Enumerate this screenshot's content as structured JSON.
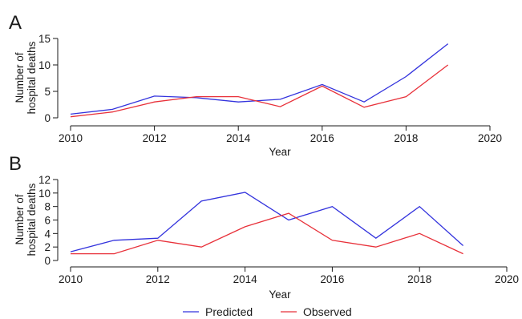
{
  "colors": {
    "predicted": "#3333dd",
    "observed": "#e8313a",
    "axis": "#1a1a1a"
  },
  "legend": {
    "position": "bottom-center",
    "items": [
      {
        "label": "Predicted",
        "color": "#3333dd"
      },
      {
        "label": "Observed",
        "color": "#e8313a"
      }
    ]
  },
  "chart_data": [
    {
      "panel": "A",
      "type": "line",
      "xlabel": "Year",
      "ylabel": "Number of hospital deaths",
      "xlim": [
        2010,
        2020
      ],
      "ylim": [
        0,
        15
      ],
      "xticks": [
        2010,
        2012,
        2014,
        2016,
        2018,
        2020
      ],
      "yticks": [
        0,
        5,
        10,
        15
      ],
      "grid": false,
      "x": [
        2010,
        2011,
        2012,
        2013,
        2014,
        2015,
        2016,
        2017,
        2018,
        2019
      ],
      "series": [
        {
          "name": "Predicted",
          "values": [
            0.7,
            1.6,
            4.1,
            3.8,
            3.0,
            3.5,
            6.3,
            3.0,
            7.8,
            14.0
          ]
        },
        {
          "name": "Observed",
          "values": [
            0.2,
            1.1,
            3.0,
            4.0,
            4.0,
            2.1,
            6.0,
            2.0,
            4.0,
            10.0
          ]
        }
      ]
    },
    {
      "panel": "B",
      "type": "line",
      "xlabel": "Year",
      "ylabel": "Number of hospital deaths",
      "xlim": [
        2010,
        2020
      ],
      "ylim": [
        0,
        12
      ],
      "xticks": [
        2010,
        2012,
        2014,
        2016,
        2018,
        2020
      ],
      "yticks": [
        0,
        2,
        4,
        6,
        8,
        10,
        12
      ],
      "grid": false,
      "x": [
        2010,
        2011,
        2012,
        2013,
        2014,
        2015,
        2016,
        2017,
        2018,
        2019
      ],
      "series": [
        {
          "name": "Predicted",
          "values": [
            1.3,
            3.0,
            3.3,
            8.8,
            10.1,
            6.0,
            8.0,
            3.3,
            8.0,
            2.2
          ]
        },
        {
          "name": "Observed",
          "values": [
            1.0,
            1.0,
            3.0,
            2.0,
            5.0,
            7.0,
            3.0,
            2.0,
            4.0,
            1.0
          ]
        }
      ]
    }
  ]
}
